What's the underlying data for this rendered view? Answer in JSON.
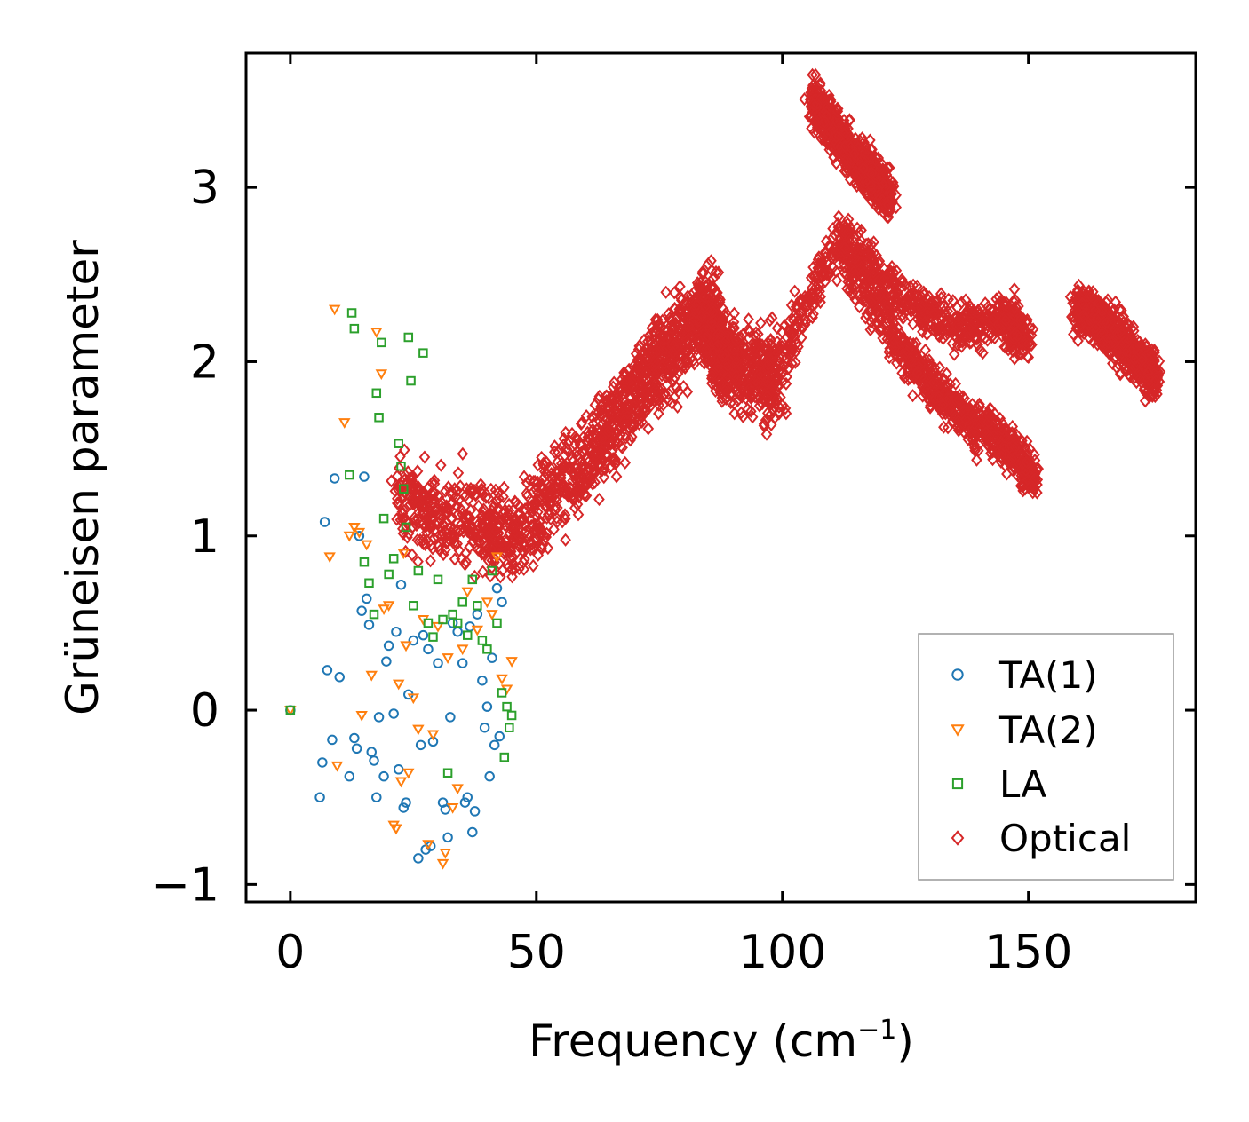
{
  "chart_data": {
    "type": "scatter",
    "title": "",
    "xlabel": "Frequency (cm",
    "xlabel_sup": "−1",
    "xlabel_end": ")",
    "ylabel": "Grüneisen parameter",
    "xlim": [
      -9,
      184
    ],
    "ylim": [
      -1.1,
      3.77
    ],
    "xticks": [
      0,
      50,
      100,
      150
    ],
    "xtick_labels": [
      "0",
      "50",
      "100",
      "150"
    ],
    "yticks": [
      -1,
      0,
      1,
      2,
      3
    ],
    "ytick_labels": [
      "−1",
      "0",
      "1",
      "2",
      "3"
    ],
    "grid": false,
    "legend_position": "lower-right",
    "series": [
      {
        "name": "TA(1)",
        "marker": "circle",
        "color": "#1f77b4",
        "points": [
          [
            0,
            0
          ],
          [
            6,
            -0.5
          ],
          [
            6.5,
            -0.3
          ],
          [
            7,
            1.08
          ],
          [
            7.5,
            0.23
          ],
          [
            8.5,
            -0.17
          ],
          [
            9,
            1.33
          ],
          [
            10,
            0.19
          ],
          [
            12,
            -0.38
          ],
          [
            13,
            -0.16
          ],
          [
            13.5,
            -0.22
          ],
          [
            14,
            1.0
          ],
          [
            14.5,
            0.57
          ],
          [
            15,
            1.34
          ],
          [
            15.5,
            0.64
          ],
          [
            16,
            0.49
          ],
          [
            16.5,
            -0.24
          ],
          [
            17,
            -0.29
          ],
          [
            17.5,
            -0.5
          ],
          [
            18,
            -0.04
          ],
          [
            19,
            -0.38
          ],
          [
            19.5,
            0.28
          ],
          [
            20,
            0.37
          ],
          [
            21,
            -0.02
          ],
          [
            21.5,
            0.45
          ],
          [
            22,
            -0.34
          ],
          [
            22.5,
            0.72
          ],
          [
            23,
            -0.56
          ],
          [
            23.5,
            -0.53
          ],
          [
            24,
            0.09
          ],
          [
            25,
            0.4
          ],
          [
            26,
            -0.85
          ],
          [
            26.5,
            -0.2
          ],
          [
            27,
            0.43
          ],
          [
            27.5,
            -0.8
          ],
          [
            28,
            0.35
          ],
          [
            28.5,
            -0.78
          ],
          [
            29,
            -0.18
          ],
          [
            30,
            0.27
          ],
          [
            31,
            -0.53
          ],
          [
            31.5,
            -0.57
          ],
          [
            32,
            -0.73
          ],
          [
            32.5,
            -0.04
          ],
          [
            33,
            0.5
          ],
          [
            34,
            0.45
          ],
          [
            35,
            0.27
          ],
          [
            35.5,
            -0.53
          ],
          [
            36,
            -0.5
          ],
          [
            36.5,
            0.48
          ],
          [
            37,
            -0.7
          ],
          [
            37.5,
            -0.58
          ],
          [
            38,
            0.55
          ],
          [
            39,
            0.17
          ],
          [
            39.5,
            -0.1
          ],
          [
            40,
            0.02
          ],
          [
            40.5,
            -0.38
          ],
          [
            41,
            0.3
          ],
          [
            41.5,
            -0.2
          ],
          [
            42,
            0.7
          ],
          [
            42.5,
            -0.15
          ],
          [
            43,
            0.62
          ]
        ]
      },
      {
        "name": "TA(2)",
        "marker": "triangle",
        "color": "#ff7f0e",
        "points": [
          [
            0,
            0
          ],
          [
            8,
            0.88
          ],
          [
            9,
            2.3
          ],
          [
            9.5,
            -0.32
          ],
          [
            11,
            1.65
          ],
          [
            12,
            1.0
          ],
          [
            13,
            1.05
          ],
          [
            14,
            1.02
          ],
          [
            14.5,
            -0.03
          ],
          [
            15.5,
            0.95
          ],
          [
            16.5,
            0.2
          ],
          [
            17.5,
            2.17
          ],
          [
            18.5,
            1.93
          ],
          [
            19,
            0.58
          ],
          [
            20,
            0.6
          ],
          [
            21,
            -0.66
          ],
          [
            21.5,
            -0.68
          ],
          [
            22,
            0.15
          ],
          [
            22.5,
            -0.41
          ],
          [
            23,
            0.9
          ],
          [
            23.5,
            0.37
          ],
          [
            24,
            -0.36
          ],
          [
            25,
            0.07
          ],
          [
            26,
            -0.11
          ],
          [
            27,
            0.52
          ],
          [
            28,
            -0.77
          ],
          [
            29,
            -0.14
          ],
          [
            30,
            0.48
          ],
          [
            31,
            -0.88
          ],
          [
            31.5,
            -0.82
          ],
          [
            32,
            0.3
          ],
          [
            33,
            -0.56
          ],
          [
            34,
            -0.45
          ],
          [
            35,
            0.35
          ],
          [
            36,
            0.68
          ],
          [
            38,
            0.46
          ],
          [
            40,
            0.62
          ],
          [
            41,
            0.55
          ],
          [
            42,
            0.88
          ],
          [
            43,
            0.18
          ],
          [
            44,
            0.12
          ],
          [
            45,
            0.28
          ]
        ]
      },
      {
        "name": "LA",
        "marker": "square",
        "color": "#2ca02c",
        "points": [
          [
            0,
            0
          ],
          [
            12,
            1.35
          ],
          [
            12.5,
            2.28
          ],
          [
            13,
            2.19
          ],
          [
            15,
            0.85
          ],
          [
            16,
            0.73
          ],
          [
            17,
            0.55
          ],
          [
            17.5,
            1.82
          ],
          [
            18,
            1.68
          ],
          [
            18.5,
            2.11
          ],
          [
            19,
            1.1
          ],
          [
            20,
            0.78
          ],
          [
            21,
            0.87
          ],
          [
            22,
            1.53
          ],
          [
            22.5,
            1.4
          ],
          [
            23,
            1.27
          ],
          [
            23.5,
            1.05
          ],
          [
            24,
            2.14
          ],
          [
            24.5,
            1.89
          ],
          [
            25,
            0.6
          ],
          [
            26,
            0.8
          ],
          [
            27,
            2.05
          ],
          [
            28,
            0.5
          ],
          [
            29,
            0.42
          ],
          [
            30,
            0.75
          ],
          [
            31,
            0.52
          ],
          [
            32,
            -0.36
          ],
          [
            33,
            0.55
          ],
          [
            34,
            0.5
          ],
          [
            35,
            0.62
          ],
          [
            36,
            0.43
          ],
          [
            37,
            0.75
          ],
          [
            38,
            0.6
          ],
          [
            39,
            0.4
          ],
          [
            40,
            0.35
          ],
          [
            41,
            0.8
          ],
          [
            42,
            0.5
          ],
          [
            43,
            0.1
          ],
          [
            43.5,
            -0.27
          ],
          [
            44,
            0.02
          ],
          [
            44.5,
            -0.1
          ],
          [
            45,
            -0.03
          ]
        ]
      },
      {
        "name": "Optical",
        "marker": "diamond",
        "color": "#d62728",
        "trend_segments": [
          [
            [
              22,
              1.2
            ],
            [
              45,
              1.0
            ],
            [
              62,
              1.5
            ],
            [
              75,
              2.0
            ],
            [
              85,
              2.3
            ],
            [
              88,
              2.0
            ],
            [
              100,
              1.9
            ]
          ],
          [
            [
              100,
              2.05
            ],
            [
              112,
              2.75
            ],
            [
              122,
              2.4
            ],
            [
              135,
              2.2
            ],
            [
              145,
              2.25
            ],
            [
              150,
              2.12
            ]
          ],
          [
            [
              112,
              2.6
            ],
            [
              125,
              2.05
            ],
            [
              135,
              1.72
            ],
            [
              145,
              1.55
            ],
            [
              151,
              1.35
            ]
          ],
          [
            [
              106,
              3.52
            ],
            [
              115,
              3.15
            ],
            [
              122,
              2.95
            ]
          ],
          [
            [
              160,
              2.3
            ],
            [
              168,
              2.15
            ],
            [
              176,
              1.9
            ]
          ]
        ],
        "band_half_width": 0.45,
        "approx_point_count": 5000
      }
    ]
  }
}
